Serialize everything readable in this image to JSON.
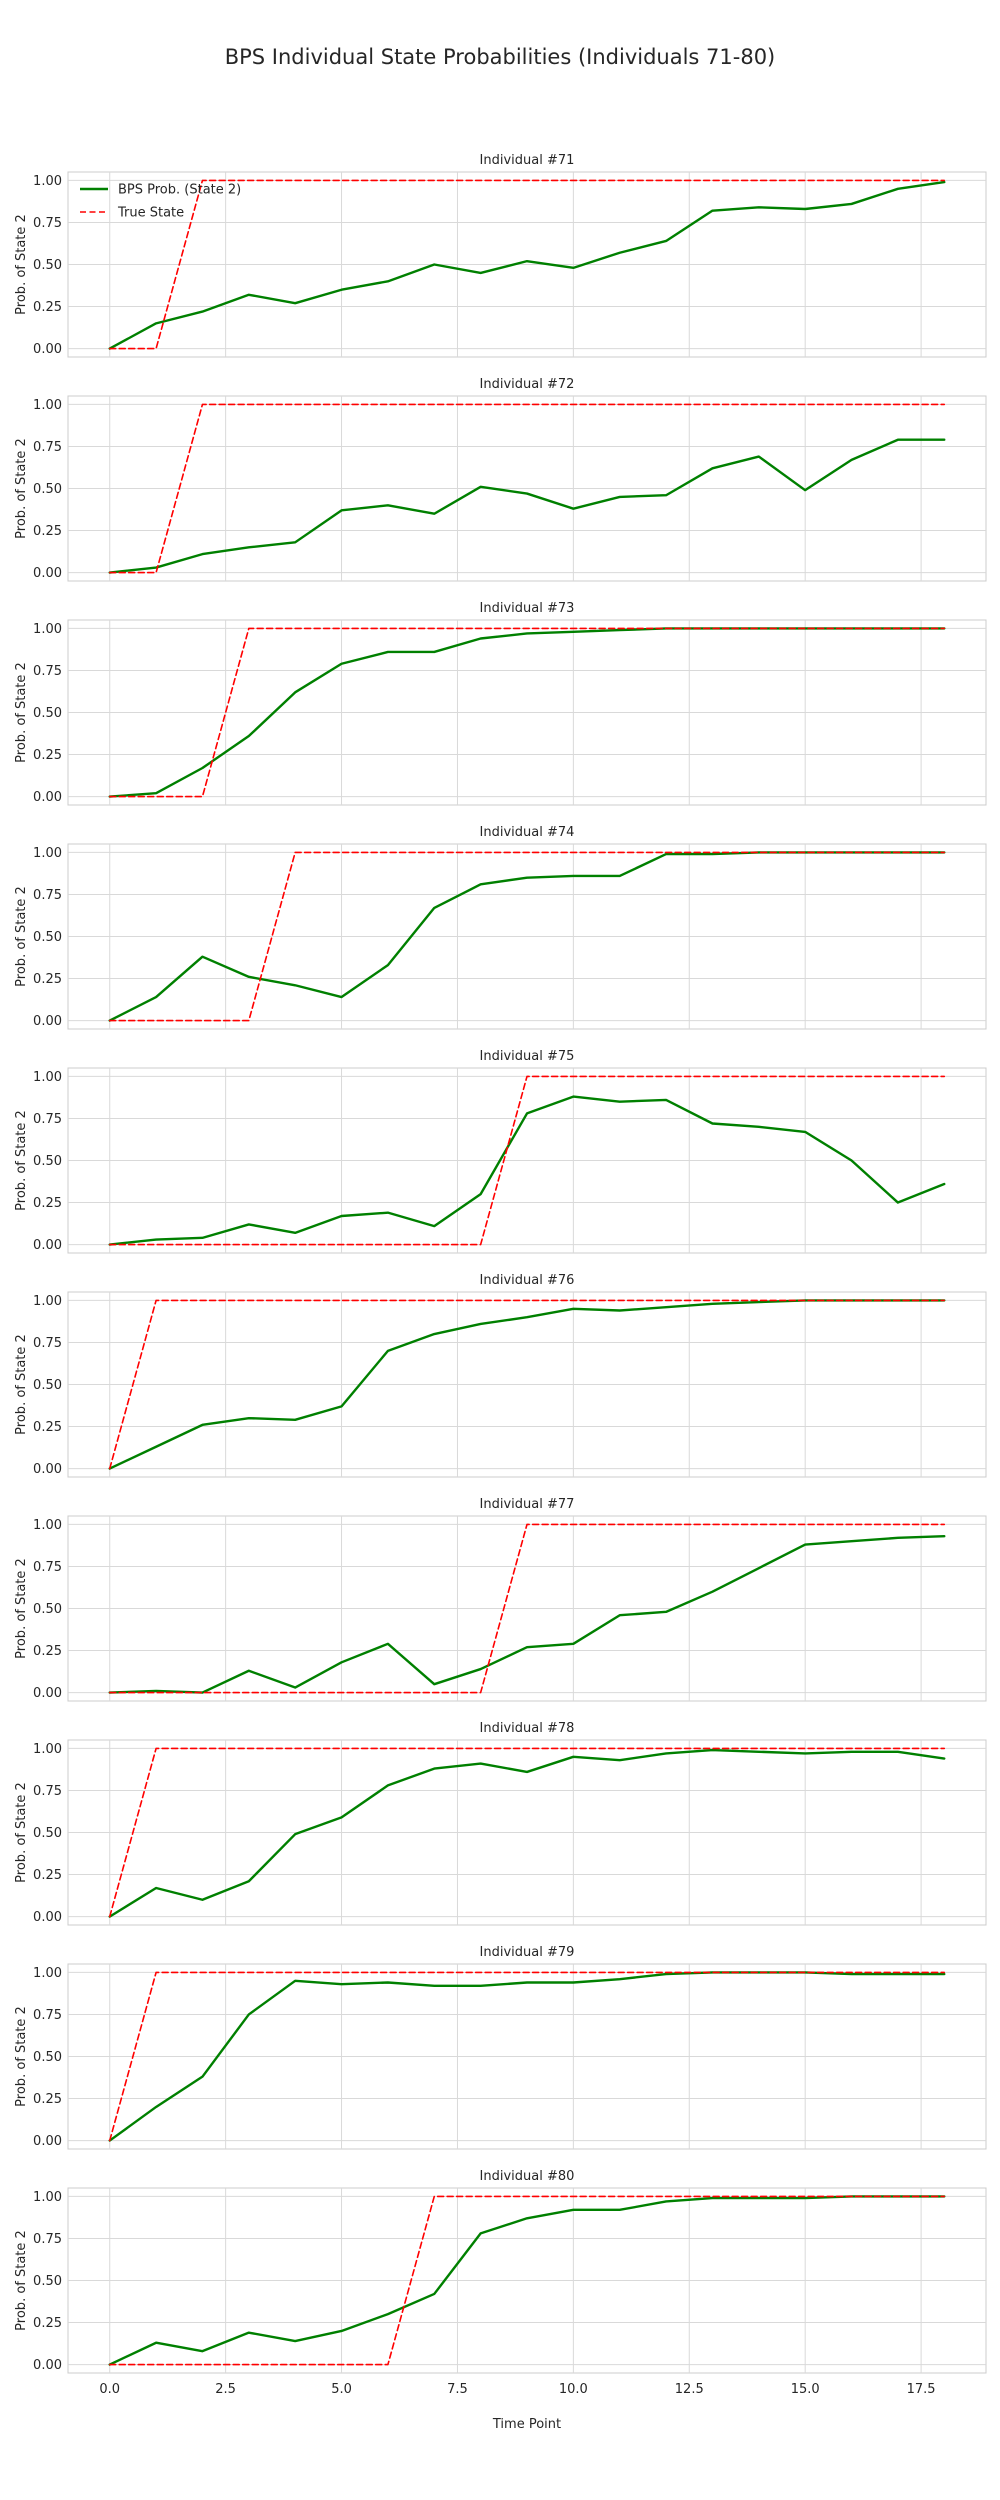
{
  "figure": {
    "title": "BPS Individual State Probabilities (Individuals 71-80)",
    "xlabel": "Time Point",
    "ylabel": "Prob. of State 2"
  },
  "colors": {
    "prob_line": "#008000",
    "true_line": "#ff0000",
    "grid": "#d9d9d9",
    "frame": "#cccccc"
  },
  "legend": {
    "placement": "upper-left",
    "entries": [
      "BPS Prob. (State 2)",
      "True State"
    ]
  },
  "chart_data": [
    {
      "type": "line",
      "title": "Individual #71",
      "x": [
        0,
        1,
        2,
        3,
        4,
        5,
        6,
        7,
        8,
        9,
        10,
        11,
        12,
        13,
        14,
        15,
        16,
        17,
        18
      ],
      "xlim": [
        -0.9,
        18.9
      ],
      "ylim": [
        -0.05,
        1.05
      ],
      "xticks": [
        "0.0",
        "2.5",
        "5.0",
        "7.5",
        "10.0",
        "12.5",
        "15.0",
        "17.5"
      ],
      "yticks": [
        "0.00",
        "0.25",
        "0.50",
        "0.75",
        "1.00"
      ],
      "grid": true,
      "series": [
        {
          "name": "BPS Prob. (State 2)",
          "style": "solid",
          "values": [
            0.0,
            0.15,
            0.22,
            0.32,
            0.27,
            0.35,
            0.4,
            0.5,
            0.45,
            0.52,
            0.48,
            0.57,
            0.64,
            0.82,
            0.84,
            0.83,
            0.86,
            0.95,
            0.99
          ]
        },
        {
          "name": "True State",
          "style": "dashed",
          "values": [
            0,
            0,
            1,
            1,
            1,
            1,
            1,
            1,
            1,
            1,
            1,
            1,
            1,
            1,
            1,
            1,
            1,
            1,
            1
          ]
        }
      ]
    },
    {
      "type": "line",
      "title": "Individual #72",
      "x": [
        0,
        1,
        2,
        3,
        4,
        5,
        6,
        7,
        8,
        9,
        10,
        11,
        12,
        13,
        14,
        15,
        16,
        17,
        18
      ],
      "xlim": [
        -0.9,
        18.9
      ],
      "ylim": [
        -0.05,
        1.05
      ],
      "xticks": [
        "0.0",
        "2.5",
        "5.0",
        "7.5",
        "10.0",
        "12.5",
        "15.0",
        "17.5"
      ],
      "yticks": [
        "0.00",
        "0.25",
        "0.50",
        "0.75",
        "1.00"
      ],
      "grid": true,
      "series": [
        {
          "name": "BPS Prob. (State 2)",
          "style": "solid",
          "values": [
            0.0,
            0.03,
            0.11,
            0.15,
            0.18,
            0.37,
            0.4,
            0.35,
            0.51,
            0.47,
            0.38,
            0.45,
            0.46,
            0.62,
            0.69,
            0.49,
            0.67,
            0.79,
            0.79
          ]
        },
        {
          "name": "True State",
          "style": "dashed",
          "values": [
            0,
            0,
            1,
            1,
            1,
            1,
            1,
            1,
            1,
            1,
            1,
            1,
            1,
            1,
            1,
            1,
            1,
            1,
            1
          ]
        }
      ]
    },
    {
      "type": "line",
      "title": "Individual #73",
      "x": [
        0,
        1,
        2,
        3,
        4,
        5,
        6,
        7,
        8,
        9,
        10,
        11,
        12,
        13,
        14,
        15,
        16,
        17,
        18
      ],
      "xlim": [
        -0.9,
        18.9
      ],
      "ylim": [
        -0.05,
        1.05
      ],
      "xticks": [
        "0.0",
        "2.5",
        "5.0",
        "7.5",
        "10.0",
        "12.5",
        "15.0",
        "17.5"
      ],
      "yticks": [
        "0.00",
        "0.25",
        "0.50",
        "0.75",
        "1.00"
      ],
      "grid": true,
      "series": [
        {
          "name": "BPS Prob. (State 2)",
          "style": "solid",
          "values": [
            0.0,
            0.02,
            0.17,
            0.36,
            0.62,
            0.79,
            0.86,
            0.86,
            0.94,
            0.97,
            0.98,
            0.99,
            1.0,
            1.0,
            1.0,
            1.0,
            1.0,
            1.0,
            1.0
          ]
        },
        {
          "name": "True State",
          "style": "dashed",
          "values": [
            0,
            0,
            0,
            1,
            1,
            1,
            1,
            1,
            1,
            1,
            1,
            1,
            1,
            1,
            1,
            1,
            1,
            1,
            1
          ]
        }
      ]
    },
    {
      "type": "line",
      "title": "Individual #74",
      "x": [
        0,
        1,
        2,
        3,
        4,
        5,
        6,
        7,
        8,
        9,
        10,
        11,
        12,
        13,
        14,
        15,
        16,
        17,
        18
      ],
      "xlim": [
        -0.9,
        18.9
      ],
      "ylim": [
        -0.05,
        1.05
      ],
      "xticks": [
        "0.0",
        "2.5",
        "5.0",
        "7.5",
        "10.0",
        "12.5",
        "15.0",
        "17.5"
      ],
      "yticks": [
        "0.00",
        "0.25",
        "0.50",
        "0.75",
        "1.00"
      ],
      "grid": true,
      "series": [
        {
          "name": "BPS Prob. (State 2)",
          "style": "solid",
          "values": [
            0.0,
            0.14,
            0.38,
            0.26,
            0.21,
            0.14,
            0.33,
            0.67,
            0.81,
            0.85,
            0.86,
            0.86,
            0.99,
            0.99,
            1.0,
            1.0,
            1.0,
            1.0,
            1.0
          ]
        },
        {
          "name": "True State",
          "style": "dashed",
          "values": [
            0,
            0,
            0,
            0,
            1,
            1,
            1,
            1,
            1,
            1,
            1,
            1,
            1,
            1,
            1,
            1,
            1,
            1,
            1
          ]
        }
      ]
    },
    {
      "type": "line",
      "title": "Individual #75",
      "x": [
        0,
        1,
        2,
        3,
        4,
        5,
        6,
        7,
        8,
        9,
        10,
        11,
        12,
        13,
        14,
        15,
        16,
        17,
        18
      ],
      "xlim": [
        -0.9,
        18.9
      ],
      "ylim": [
        -0.05,
        1.05
      ],
      "xticks": [
        "0.0",
        "2.5",
        "5.0",
        "7.5",
        "10.0",
        "12.5",
        "15.0",
        "17.5"
      ],
      "yticks": [
        "0.00",
        "0.25",
        "0.50",
        "0.75",
        "1.00"
      ],
      "grid": true,
      "series": [
        {
          "name": "BPS Prob. (State 2)",
          "style": "solid",
          "values": [
            0.0,
            0.03,
            0.04,
            0.12,
            0.07,
            0.17,
            0.19,
            0.11,
            0.3,
            0.78,
            0.88,
            0.85,
            0.86,
            0.72,
            0.7,
            0.67,
            0.5,
            0.25,
            0.36
          ]
        },
        {
          "name": "True State",
          "style": "dashed",
          "values": [
            0,
            0,
            0,
            0,
            0,
            0,
            0,
            0,
            0,
            1,
            1,
            1,
            1,
            1,
            1,
            1,
            1,
            1,
            1
          ]
        }
      ]
    },
    {
      "type": "line",
      "title": "Individual #76",
      "x": [
        0,
        1,
        2,
        3,
        4,
        5,
        6,
        7,
        8,
        9,
        10,
        11,
        12,
        13,
        14,
        15,
        16,
        17,
        18
      ],
      "xlim": [
        -0.9,
        18.9
      ],
      "ylim": [
        -0.05,
        1.05
      ],
      "xticks": [
        "0.0",
        "2.5",
        "5.0",
        "7.5",
        "10.0",
        "12.5",
        "15.0",
        "17.5"
      ],
      "yticks": [
        "0.00",
        "0.25",
        "0.50",
        "0.75",
        "1.00"
      ],
      "grid": true,
      "series": [
        {
          "name": "BPS Prob. (State 2)",
          "style": "solid",
          "values": [
            0.0,
            0.13,
            0.26,
            0.3,
            0.29,
            0.37,
            0.7,
            0.8,
            0.86,
            0.9,
            0.95,
            0.94,
            0.96,
            0.98,
            0.99,
            1.0,
            1.0,
            1.0,
            1.0
          ]
        },
        {
          "name": "True State",
          "style": "dashed",
          "values": [
            0,
            1,
            1,
            1,
            1,
            1,
            1,
            1,
            1,
            1,
            1,
            1,
            1,
            1,
            1,
            1,
            1,
            1,
            1
          ]
        }
      ]
    },
    {
      "type": "line",
      "title": "Individual #77",
      "x": [
        0,
        1,
        2,
        3,
        4,
        5,
        6,
        7,
        8,
        9,
        10,
        11,
        12,
        13,
        14,
        15,
        16,
        17,
        18
      ],
      "xlim": [
        -0.9,
        18.9
      ],
      "ylim": [
        -0.05,
        1.05
      ],
      "xticks": [
        "0.0",
        "2.5",
        "5.0",
        "7.5",
        "10.0",
        "12.5",
        "15.0",
        "17.5"
      ],
      "yticks": [
        "0.00",
        "0.25",
        "0.50",
        "0.75",
        "1.00"
      ],
      "grid": true,
      "series": [
        {
          "name": "BPS Prob. (State 2)",
          "style": "solid",
          "values": [
            0.0,
            0.01,
            0.0,
            0.13,
            0.03,
            0.18,
            0.29,
            0.05,
            0.14,
            0.27,
            0.29,
            0.46,
            0.48,
            0.6,
            0.74,
            0.88,
            0.9,
            0.92,
            0.93
          ]
        },
        {
          "name": "True State",
          "style": "dashed",
          "values": [
            0,
            0,
            0,
            0,
            0,
            0,
            0,
            0,
            0,
            1,
            1,
            1,
            1,
            1,
            1,
            1,
            1,
            1,
            1
          ]
        }
      ]
    },
    {
      "type": "line",
      "title": "Individual #78",
      "x": [
        0,
        1,
        2,
        3,
        4,
        5,
        6,
        7,
        8,
        9,
        10,
        11,
        12,
        13,
        14,
        15,
        16,
        17,
        18
      ],
      "xlim": [
        -0.9,
        18.9
      ],
      "ylim": [
        -0.05,
        1.05
      ],
      "xticks": [
        "0.0",
        "2.5",
        "5.0",
        "7.5",
        "10.0",
        "12.5",
        "15.0",
        "17.5"
      ],
      "yticks": [
        "0.00",
        "0.25",
        "0.50",
        "0.75",
        "1.00"
      ],
      "grid": true,
      "series": [
        {
          "name": "BPS Prob. (State 2)",
          "style": "solid",
          "values": [
            0.0,
            0.17,
            0.1,
            0.21,
            0.49,
            0.59,
            0.78,
            0.88,
            0.91,
            0.86,
            0.95,
            0.93,
            0.97,
            0.99,
            0.98,
            0.97,
            0.98,
            0.98,
            0.94
          ]
        },
        {
          "name": "True State",
          "style": "dashed",
          "values": [
            0,
            1,
            1,
            1,
            1,
            1,
            1,
            1,
            1,
            1,
            1,
            1,
            1,
            1,
            1,
            1,
            1,
            1,
            1
          ]
        }
      ]
    },
    {
      "type": "line",
      "title": "Individual #79",
      "x": [
        0,
        1,
        2,
        3,
        4,
        5,
        6,
        7,
        8,
        9,
        10,
        11,
        12,
        13,
        14,
        15,
        16,
        17,
        18
      ],
      "xlim": [
        -0.9,
        18.9
      ],
      "ylim": [
        -0.05,
        1.05
      ],
      "xticks": [
        "0.0",
        "2.5",
        "5.0",
        "7.5",
        "10.0",
        "12.5",
        "15.0",
        "17.5"
      ],
      "yticks": [
        "0.00",
        "0.25",
        "0.50",
        "0.75",
        "1.00"
      ],
      "grid": true,
      "series": [
        {
          "name": "BPS Prob. (State 2)",
          "style": "solid",
          "values": [
            0.0,
            0.2,
            0.38,
            0.75,
            0.95,
            0.93,
            0.94,
            0.92,
            0.92,
            0.94,
            0.94,
            0.96,
            0.99,
            1.0,
            1.0,
            1.0,
            0.99,
            0.99,
            0.99
          ]
        },
        {
          "name": "True State",
          "style": "dashed",
          "values": [
            0,
            1,
            1,
            1,
            1,
            1,
            1,
            1,
            1,
            1,
            1,
            1,
            1,
            1,
            1,
            1,
            1,
            1,
            1
          ]
        }
      ]
    },
    {
      "type": "line",
      "title": "Individual #80",
      "x": [
        0,
        1,
        2,
        3,
        4,
        5,
        6,
        7,
        8,
        9,
        10,
        11,
        12,
        13,
        14,
        15,
        16,
        17,
        18
      ],
      "xlim": [
        -0.9,
        18.9
      ],
      "ylim": [
        -0.05,
        1.05
      ],
      "xticks": [
        "0.0",
        "2.5",
        "5.0",
        "7.5",
        "10.0",
        "12.5",
        "15.0",
        "17.5"
      ],
      "yticks": [
        "0.00",
        "0.25",
        "0.50",
        "0.75",
        "1.00"
      ],
      "grid": true,
      "series": [
        {
          "name": "BPS Prob. (State 2)",
          "style": "solid",
          "values": [
            0.0,
            0.13,
            0.08,
            0.19,
            0.14,
            0.2,
            0.3,
            0.42,
            0.78,
            0.87,
            0.92,
            0.92,
            0.97,
            0.99,
            0.99,
            0.99,
            1.0,
            1.0,
            1.0
          ]
        },
        {
          "name": "True State",
          "style": "dashed",
          "values": [
            0,
            0,
            0,
            0,
            0,
            0,
            0,
            1,
            1,
            1,
            1,
            1,
            1,
            1,
            1,
            1,
            1,
            1,
            1
          ]
        }
      ]
    }
  ]
}
